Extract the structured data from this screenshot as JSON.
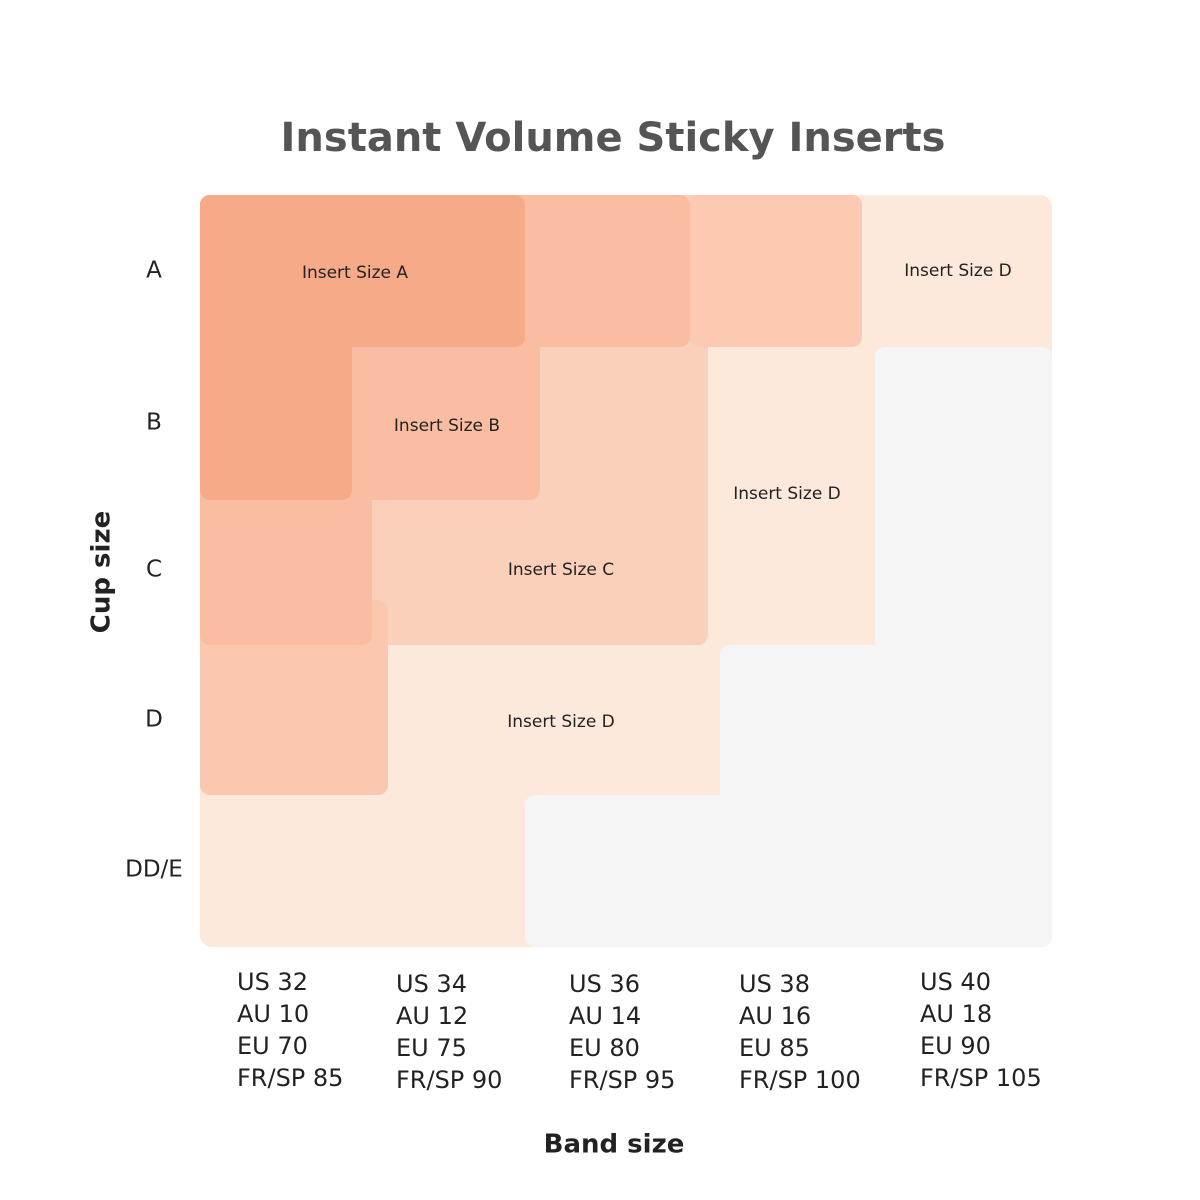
{
  "title": "Instant Volume Sticky Inserts",
  "y_axis_label": "Cup size",
  "x_axis_label": "Band size",
  "cup_sizes": [
    "A",
    "B",
    "C",
    "D",
    "DD/E"
  ],
  "band_sizes": [
    [
      "US 32",
      "AU 10",
      "EU 70",
      "FR/SP 85"
    ],
    [
      "US 34",
      "AU 12",
      "EU 75",
      "FR/SP 90"
    ],
    [
      "US 36",
      "AU 14",
      "EU 80",
      "FR/SP 95"
    ],
    [
      "US 38",
      "AU 16",
      "EU 85",
      "FR/SP 100"
    ],
    [
      "US 40",
      "AU 18",
      "EU 90",
      "FR/SP 105"
    ]
  ],
  "regions": [
    {
      "label": "Insert Size A"
    },
    {
      "label": "Insert Size B"
    },
    {
      "label": "Insert Size C"
    },
    {
      "label": "Insert Size D"
    },
    {
      "label": "Insert Size D"
    },
    {
      "label": "Insert Size D"
    }
  ]
}
